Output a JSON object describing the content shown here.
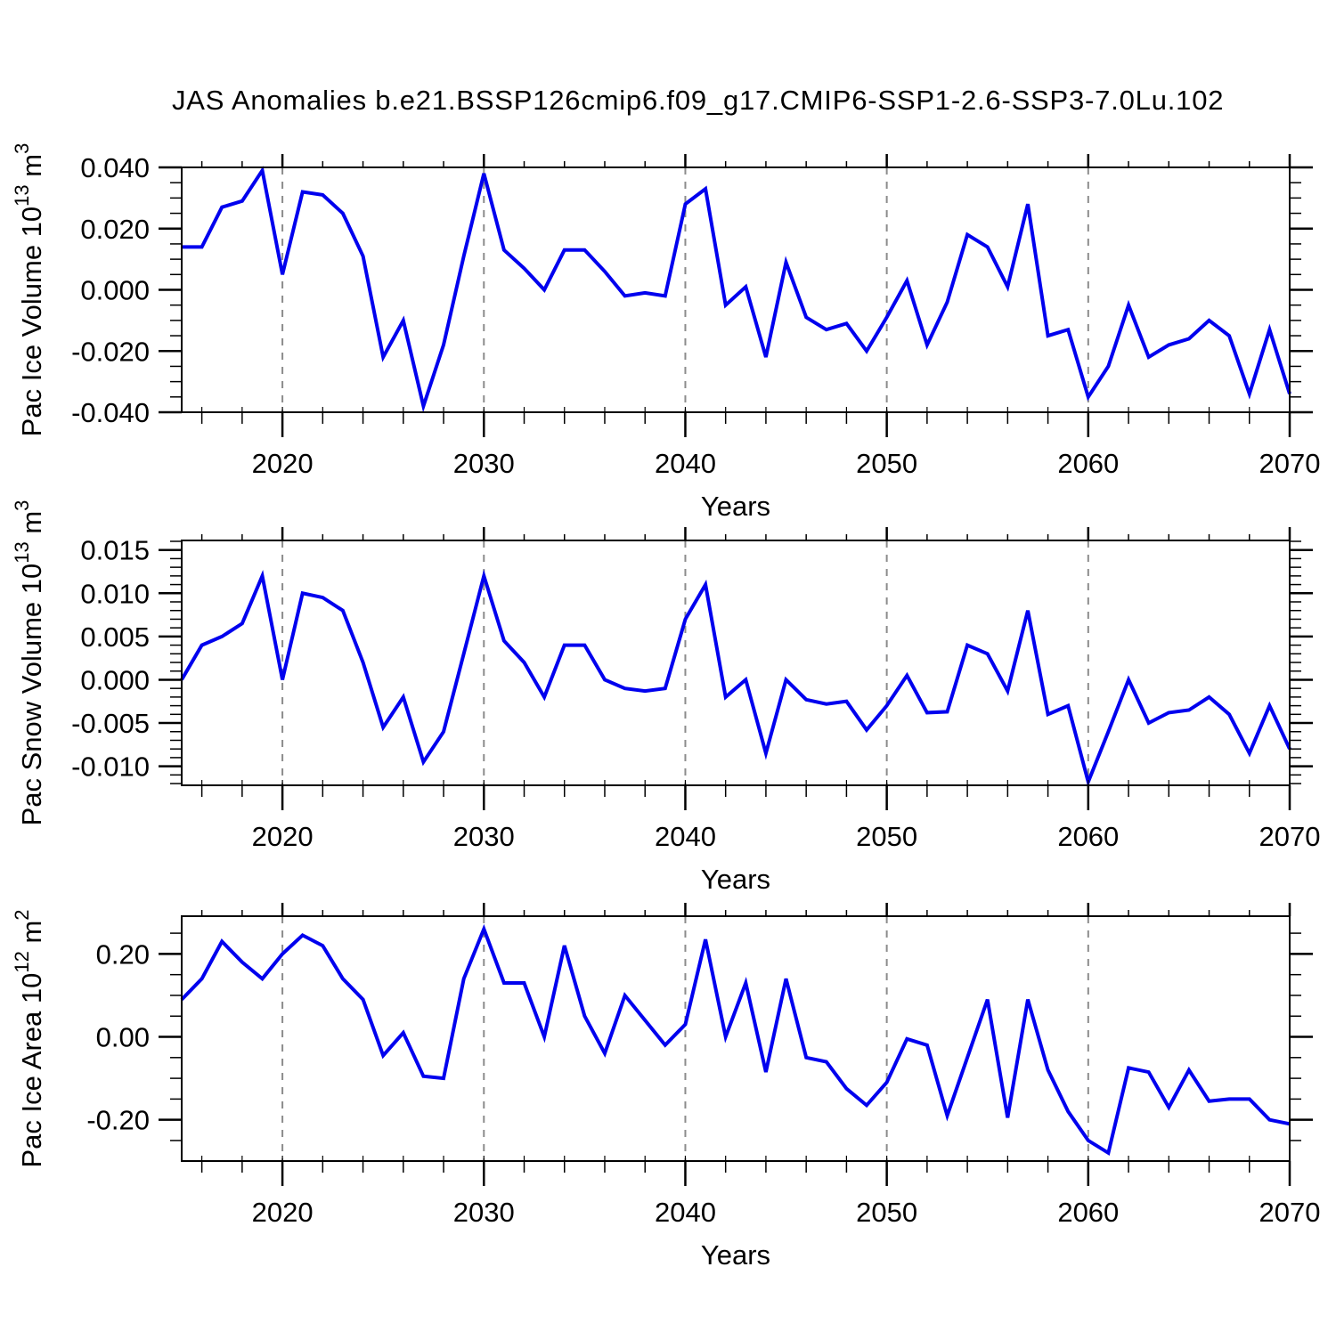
{
  "title": "JAS Anomalies b.e21.BSSP126cmip6.f09_g17.CMIP6-SSP1-2.6-SSP3-7.0Lu.102",
  "chart_data": {
    "type": "line",
    "xlabel": "Years",
    "x": [
      2015,
      2016,
      2017,
      2018,
      2019,
      2020,
      2021,
      2022,
      2023,
      2024,
      2025,
      2026,
      2027,
      2028,
      2029,
      2030,
      2031,
      2032,
      2033,
      2034,
      2035,
      2036,
      2037,
      2038,
      2039,
      2040,
      2041,
      2042,
      2043,
      2044,
      2045,
      2046,
      2047,
      2048,
      2049,
      2050,
      2051,
      2052,
      2053,
      2054,
      2055,
      2056,
      2057,
      2058,
      2059,
      2060,
      2061,
      2062,
      2063,
      2064,
      2065,
      2066,
      2067,
      2068,
      2069,
      2070
    ],
    "xticks": [
      2020,
      2030,
      2040,
      2050,
      2060,
      2070
    ],
    "x_minor_interval": 2,
    "gridline_years": [
      2020,
      2030,
      2040,
      2050,
      2060
    ],
    "line_color": "#0000ee",
    "grid_color": "#8c8c8c",
    "axis_color": "#000000",
    "legend": "none",
    "grid": "vertical-dashed-at-decades",
    "panels": [
      {
        "name": "pac-ice-volume",
        "ylabel": "Pac Ice Volume 10^13 m^3",
        "ylabel_parts": [
          {
            "t": "Pac Ice Volume 10"
          },
          {
            "t": "13",
            "sup": true
          },
          {
            "t": " m"
          },
          {
            "t": "3",
            "sup": true
          }
        ],
        "ylim": [
          -0.04,
          0.04
        ],
        "ytick_values": [
          0.04,
          0.02,
          0.0,
          -0.02,
          -0.04
        ],
        "ytick_labels": [
          "0.040",
          "0.020",
          "0.000",
          "-0.020",
          "-0.040"
        ],
        "y_minor_step": 0.005,
        "values": [
          0.014,
          0.014,
          0.027,
          0.029,
          0.039,
          0.005,
          0.032,
          0.031,
          0.025,
          0.011,
          -0.022,
          -0.01,
          -0.038,
          -0.018,
          0.011,
          0.038,
          0.013,
          0.007,
          0.0,
          0.013,
          0.013,
          0.006,
          -0.002,
          -0.001,
          -0.002,
          0.028,
          0.033,
          -0.005,
          0.001,
          -0.022,
          0.009,
          -0.009,
          -0.013,
          -0.011,
          -0.02,
          -0.009,
          0.003,
          -0.018,
          -0.004,
          0.018,
          0.014,
          0.001,
          0.028,
          -0.015,
          -0.013,
          -0.035,
          -0.025,
          -0.005,
          -0.022,
          -0.018,
          -0.016,
          -0.01,
          -0.015,
          -0.034,
          -0.013,
          -0.034
        ]
      },
      {
        "name": "pac-snow-volume",
        "ylabel": "Pac Snow Volume 10^13 m^3",
        "ylabel_parts": [
          {
            "t": "Pac Snow Volume 10"
          },
          {
            "t": "13",
            "sup": true
          },
          {
            "t": " m"
          },
          {
            "t": "3",
            "sup": true
          }
        ],
        "ylim": [
          -0.0122,
          0.0161
        ],
        "ytick_values": [
          0.015,
          0.01,
          0.005,
          0.0,
          -0.005,
          -0.01
        ],
        "ytick_labels": [
          "0.015",
          "0.010",
          "0.005",
          "0.000",
          "-0.005",
          "-0.010"
        ],
        "y_minor_step": 0.001,
        "values": [
          0.0,
          0.004,
          0.005,
          0.0065,
          0.012,
          0.0,
          0.01,
          0.0095,
          0.008,
          0.002,
          -0.0055,
          -0.002,
          -0.0095,
          -0.006,
          0.003,
          0.012,
          0.0045,
          0.002,
          -0.002,
          0.004,
          0.004,
          0.0,
          -0.001,
          -0.0013,
          -0.001,
          0.007,
          0.011,
          -0.002,
          0.0,
          -0.0085,
          0.0,
          -0.0023,
          -0.0028,
          -0.0025,
          -0.0058,
          -0.003,
          0.0005,
          -0.0038,
          -0.0037,
          0.004,
          0.003,
          -0.0013,
          0.008,
          -0.004,
          -0.003,
          -0.0118,
          -0.006,
          0.0,
          -0.005,
          -0.0038,
          -0.0035,
          -0.002,
          -0.004,
          -0.0085,
          -0.003,
          -0.008
        ]
      },
      {
        "name": "pac-ice-area",
        "ylabel": "Pac Ice Area 10^12 m^2",
        "ylabel_parts": [
          {
            "t": "Pac Ice Area 10"
          },
          {
            "t": "12",
            "sup": true
          },
          {
            "t": " m"
          },
          {
            "t": "2",
            "sup": true
          }
        ],
        "ylim": [
          -0.2995,
          0.291
        ],
        "ytick_values": [
          0.2,
          0.0,
          -0.2
        ],
        "ytick_labels": [
          "0.20",
          "0.00",
          "-0.20"
        ],
        "y_minor_step": 0.05,
        "values": [
          0.09,
          0.14,
          0.23,
          0.18,
          0.14,
          0.2,
          0.245,
          0.22,
          0.14,
          0.09,
          -0.045,
          0.01,
          -0.095,
          -0.1,
          0.14,
          0.26,
          0.13,
          0.13,
          0.0,
          0.22,
          0.05,
          -0.04,
          0.1,
          0.04,
          -0.02,
          0.03,
          0.235,
          0.0,
          0.13,
          -0.085,
          0.14,
          -0.05,
          -0.06,
          -0.125,
          -0.165,
          -0.11,
          -0.005,
          -0.02,
          -0.19,
          -0.05,
          0.09,
          -0.195,
          0.09,
          -0.08,
          -0.18,
          -0.25,
          -0.28,
          -0.075,
          -0.085,
          -0.17,
          -0.08,
          -0.155,
          -0.15,
          -0.15,
          -0.2,
          -0.21
        ]
      }
    ]
  }
}
